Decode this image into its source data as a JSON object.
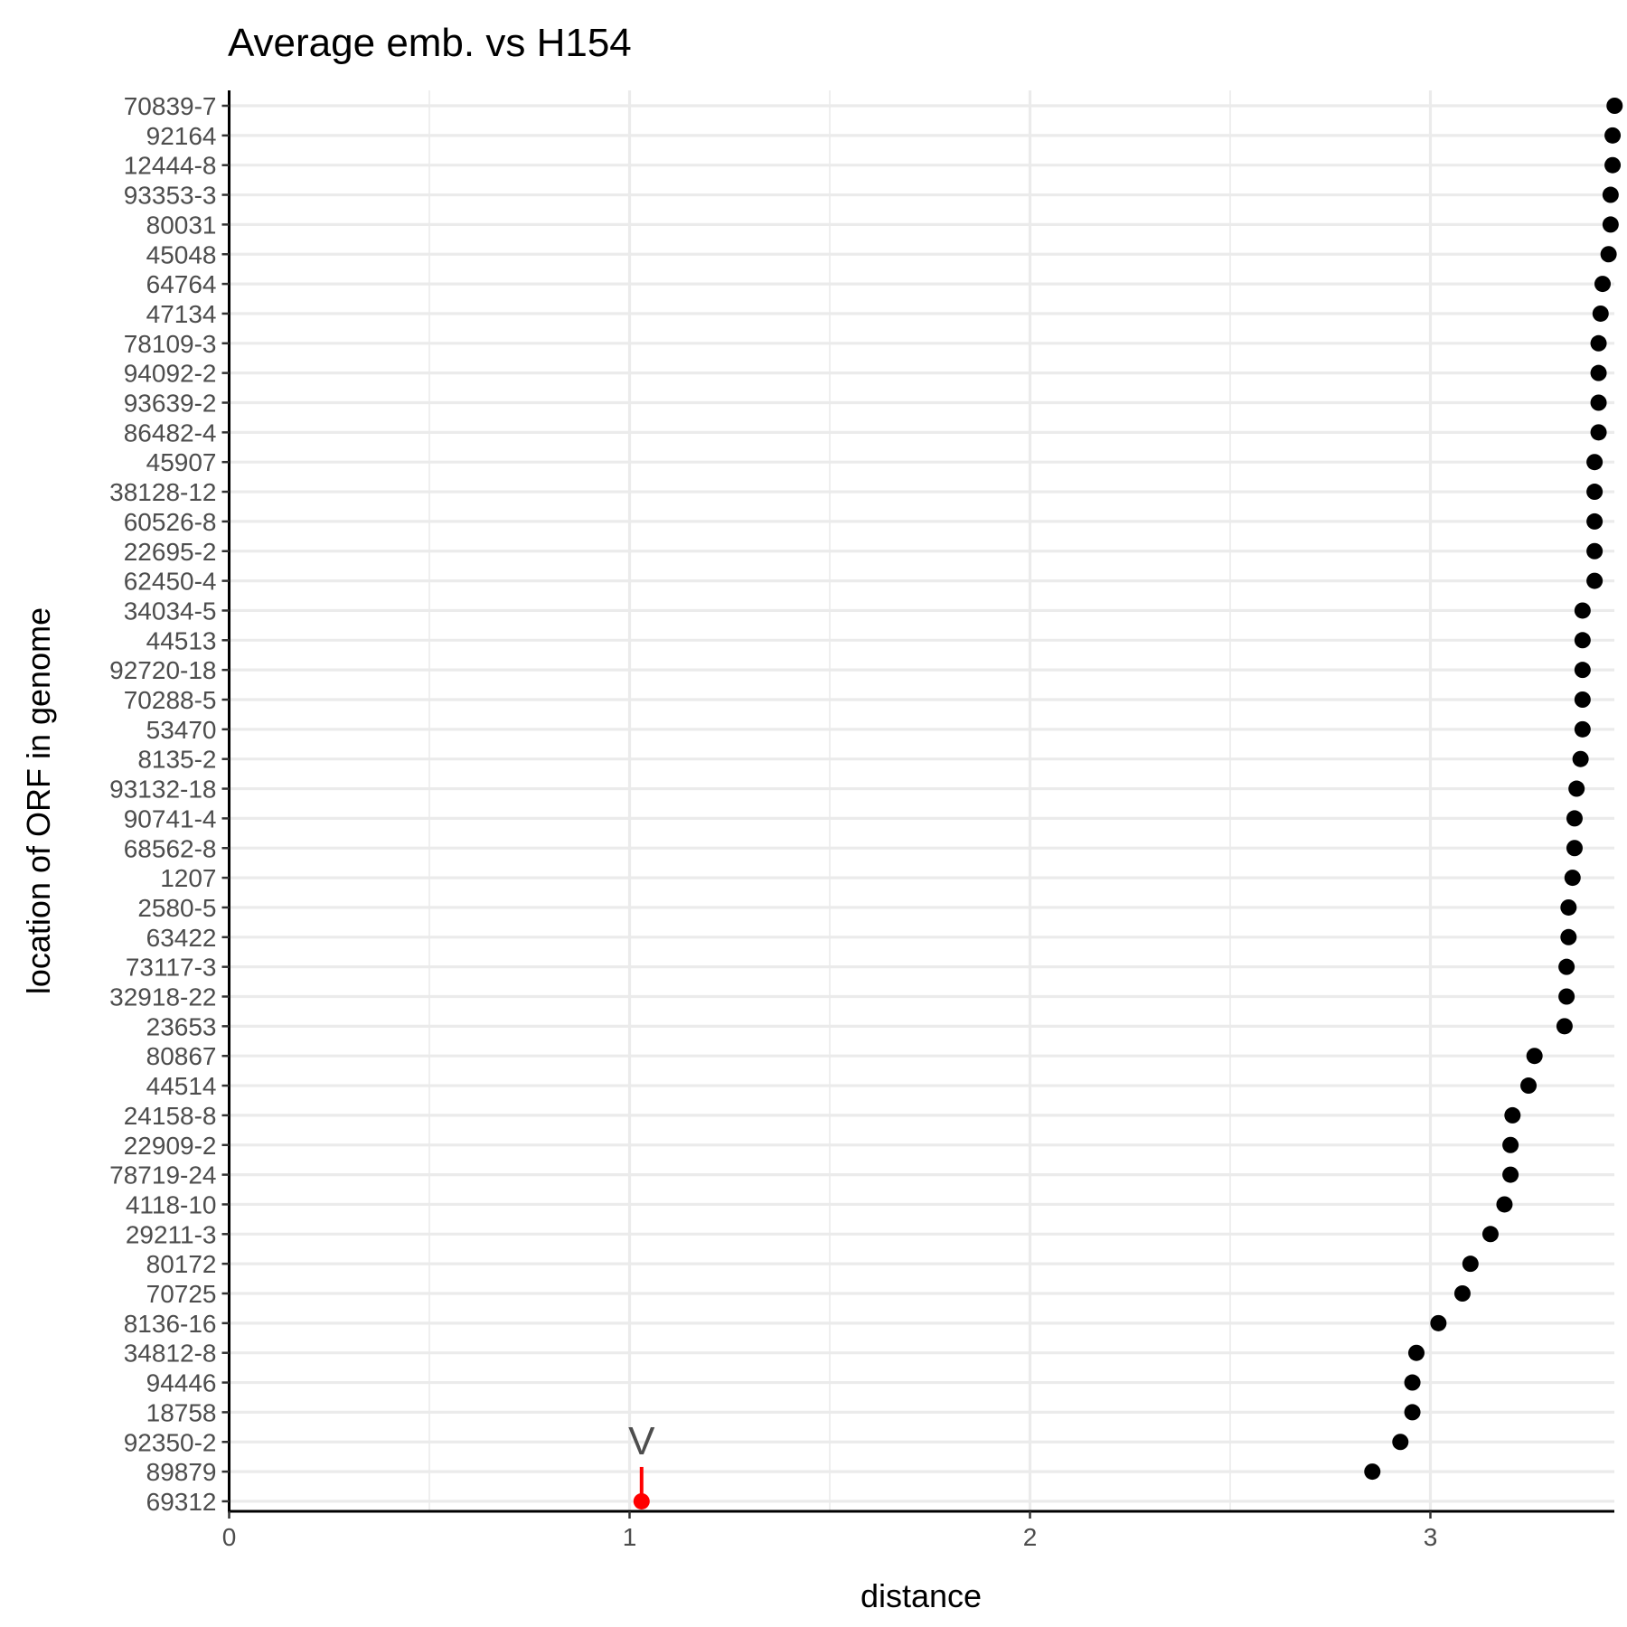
{
  "chart_data": {
    "type": "scatter",
    "title": "Average emb. vs H154",
    "xlabel": "distance",
    "ylabel": "location of ORF in genome",
    "xlim": [
      0,
      3.46
    ],
    "x_ticks": [
      "0",
      "1",
      "2",
      "3"
    ],
    "x_tick_values": [
      0,
      1,
      2,
      3
    ],
    "grid": "major and minor, vertical and horizontal",
    "point_color": "#000000",
    "highlight_color": "#ff0000",
    "highlight": {
      "label": "69312",
      "annotation": "V",
      "x": 1.03
    },
    "categories": [
      "70839-7",
      "92164",
      "12444-8",
      "93353-3",
      "80031",
      "45048",
      "64764",
      "47134",
      "78109-3",
      "94092-2",
      "93639-2",
      "86482-4",
      "45907",
      "38128-12",
      "60526-8",
      "22695-2",
      "62450-4",
      "34034-5",
      "44513",
      "92720-18",
      "70288-5",
      "53470",
      "8135-2",
      "93132-18",
      "90741-4",
      "68562-8",
      "1207",
      "2580-5",
      "63422",
      "73117-3",
      "32918-22",
      "23653",
      "80867",
      "44514",
      "24158-8",
      "22909-2",
      "78719-24",
      "4118-10",
      "29211-3",
      "80172",
      "70725",
      "8136-16",
      "34812-8",
      "94446",
      "18758",
      "92350-2",
      "89879",
      "69312"
    ],
    "values": [
      3.46,
      3.455,
      3.455,
      3.45,
      3.45,
      3.445,
      3.43,
      3.425,
      3.42,
      3.42,
      3.42,
      3.42,
      3.41,
      3.41,
      3.41,
      3.41,
      3.41,
      3.38,
      3.38,
      3.38,
      3.38,
      3.38,
      3.375,
      3.365,
      3.36,
      3.36,
      3.355,
      3.345,
      3.345,
      3.34,
      3.34,
      3.335,
      3.26,
      3.245,
      3.205,
      3.2,
      3.2,
      3.185,
      3.15,
      3.1,
      3.08,
      3.02,
      2.965,
      2.955,
      2.955,
      2.925,
      2.855,
      1.03
    ]
  }
}
